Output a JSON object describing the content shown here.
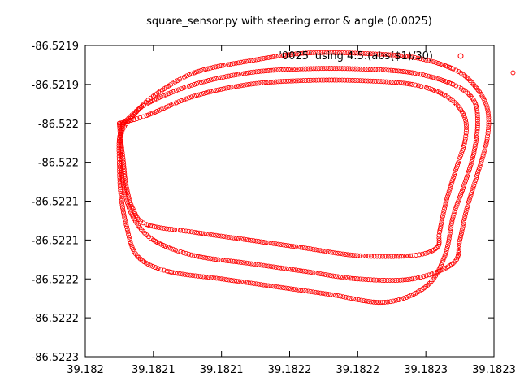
{
  "chart_data": {
    "type": "scatter",
    "title": "square_sensor.py with steering error & angle (0.0025)",
    "xlabel": "",
    "ylabel": "",
    "xlim": [
      39.182,
      39.1823
    ],
    "ylim": [
      -86.5223,
      -86.5219
    ],
    "x_ticks": [
      39.182,
      39.18205,
      39.1821,
      39.18215,
      39.1822,
      39.18225,
      39.1823
    ],
    "x_tick_labels": [
      "39.182",
      "39.1821",
      "39.1821",
      "39.1822",
      "39.1822",
      "39.1823",
      "39.1823"
    ],
    "y_ticks": [
      -86.5219,
      -86.52195,
      -86.522,
      -86.52205,
      -86.5221,
      -86.52215,
      -86.5222,
      -86.52225,
      -86.5223
    ],
    "y_tick_labels": [
      "-86.5219",
      "-86.5219",
      "-86.522",
      "-86.522",
      "-86.5221",
      "-86.5221",
      "-86.5222",
      "-86.5222",
      "-86.5223"
    ],
    "grid": false,
    "legend_position": "top-right",
    "series": [
      {
        "name": "'0025' using 4:5:(abs($1)/30)",
        "color": "#ff0000",
        "marker": "circle-open",
        "laps": [
          [
            [
              39.182035,
              -86.52199
            ],
            [
              39.18205,
              -86.521965
            ],
            [
              39.18208,
              -86.521935
            ],
            [
              39.18212,
              -86.52192
            ],
            [
              39.18216,
              -86.52191
            ],
            [
              39.1822,
              -86.52191
            ],
            [
              39.18224,
              -86.521915
            ],
            [
              39.18227,
              -86.52193
            ],
            [
              39.182285,
              -86.52195
            ],
            [
              39.182295,
              -86.52198
            ],
            [
              39.182295,
              -86.52202
            ],
            [
              39.182287,
              -86.52207
            ],
            [
              39.18228,
              -86.52211
            ],
            [
              39.182275,
              -86.52215
            ],
            [
              39.18227,
              -86.52218
            ],
            [
              39.18224,
              -86.5222
            ],
            [
              39.1822,
              -86.5222
            ],
            [
              39.18216,
              -86.52219
            ],
            [
              39.18212,
              -86.52218
            ],
            [
              39.18208,
              -86.52217
            ],
            [
              39.18205,
              -86.52215
            ],
            [
              39.182035,
              -86.52212
            ],
            [
              39.182028,
              -86.52208
            ],
            [
              39.182026,
              -86.52204
            ],
            [
              39.182027,
              -86.52201
            ],
            [
              39.182035,
              -86.52199
            ]
          ],
          [
            [
              39.182028,
              -86.522
            ],
            [
              39.182045,
              -86.521975
            ],
            [
              39.18208,
              -86.52195
            ],
            [
              39.18212,
              -86.521935
            ],
            [
              39.18216,
              -86.52193
            ],
            [
              39.1822,
              -86.52193
            ],
            [
              39.18224,
              -86.521935
            ],
            [
              39.18227,
              -86.52195
            ],
            [
              39.182285,
              -86.52197
            ],
            [
              39.182288,
              -86.522
            ],
            [
              39.182285,
              -86.52204
            ],
            [
              39.182278,
              -86.52208
            ],
            [
              39.18227,
              -86.52212
            ],
            [
              39.182264,
              -86.52217
            ],
            [
              39.18225,
              -86.52221
            ],
            [
              39.18222,
              -86.52223
            ],
            [
              39.18218,
              -86.52222
            ],
            [
              39.18214,
              -86.52221
            ],
            [
              39.1821,
              -86.5222
            ],
            [
              39.18206,
              -86.52219
            ],
            [
              39.182038,
              -86.52217
            ],
            [
              39.18203,
              -86.52213
            ],
            [
              39.182026,
              -86.52209
            ],
            [
              39.182025,
              -86.52205
            ],
            [
              39.182025,
              -86.52202
            ],
            [
              39.182028,
              -86.522
            ]
          ],
          [
            [
              39.182025,
              -86.522
            ],
            [
              39.182045,
              -86.52199
            ],
            [
              39.18208,
              -86.521965
            ],
            [
              39.18212,
              -86.52195
            ],
            [
              39.18216,
              -86.521945
            ],
            [
              39.1822,
              -86.521945
            ],
            [
              39.18224,
              -86.52195
            ],
            [
              39.182265,
              -86.521965
            ],
            [
              39.182278,
              -86.52199
            ],
            [
              39.182279,
              -86.52202
            ],
            [
              39.182272,
              -86.52206
            ],
            [
              39.182265,
              -86.5221
            ],
            [
              39.18226,
              -86.52214
            ],
            [
              39.182258,
              -86.52216
            ],
            [
              39.18224,
              -86.52217
            ],
            [
              39.1822,
              -86.52217
            ],
            [
              39.18216,
              -86.52216
            ],
            [
              39.18212,
              -86.52215
            ],
            [
              39.18208,
              -86.52214
            ],
            [
              39.182045,
              -86.52213
            ],
            [
              39.182035,
              -86.52211
            ],
            [
              39.18203,
              -86.52208
            ],
            [
              39.182028,
              -86.52205
            ],
            [
              39.182026,
              -86.52202
            ],
            [
              39.182025,
              -86.522
            ]
          ]
        ],
        "extra_points": [
          [
            39.182314,
            -86.521935
          ]
        ]
      }
    ]
  }
}
